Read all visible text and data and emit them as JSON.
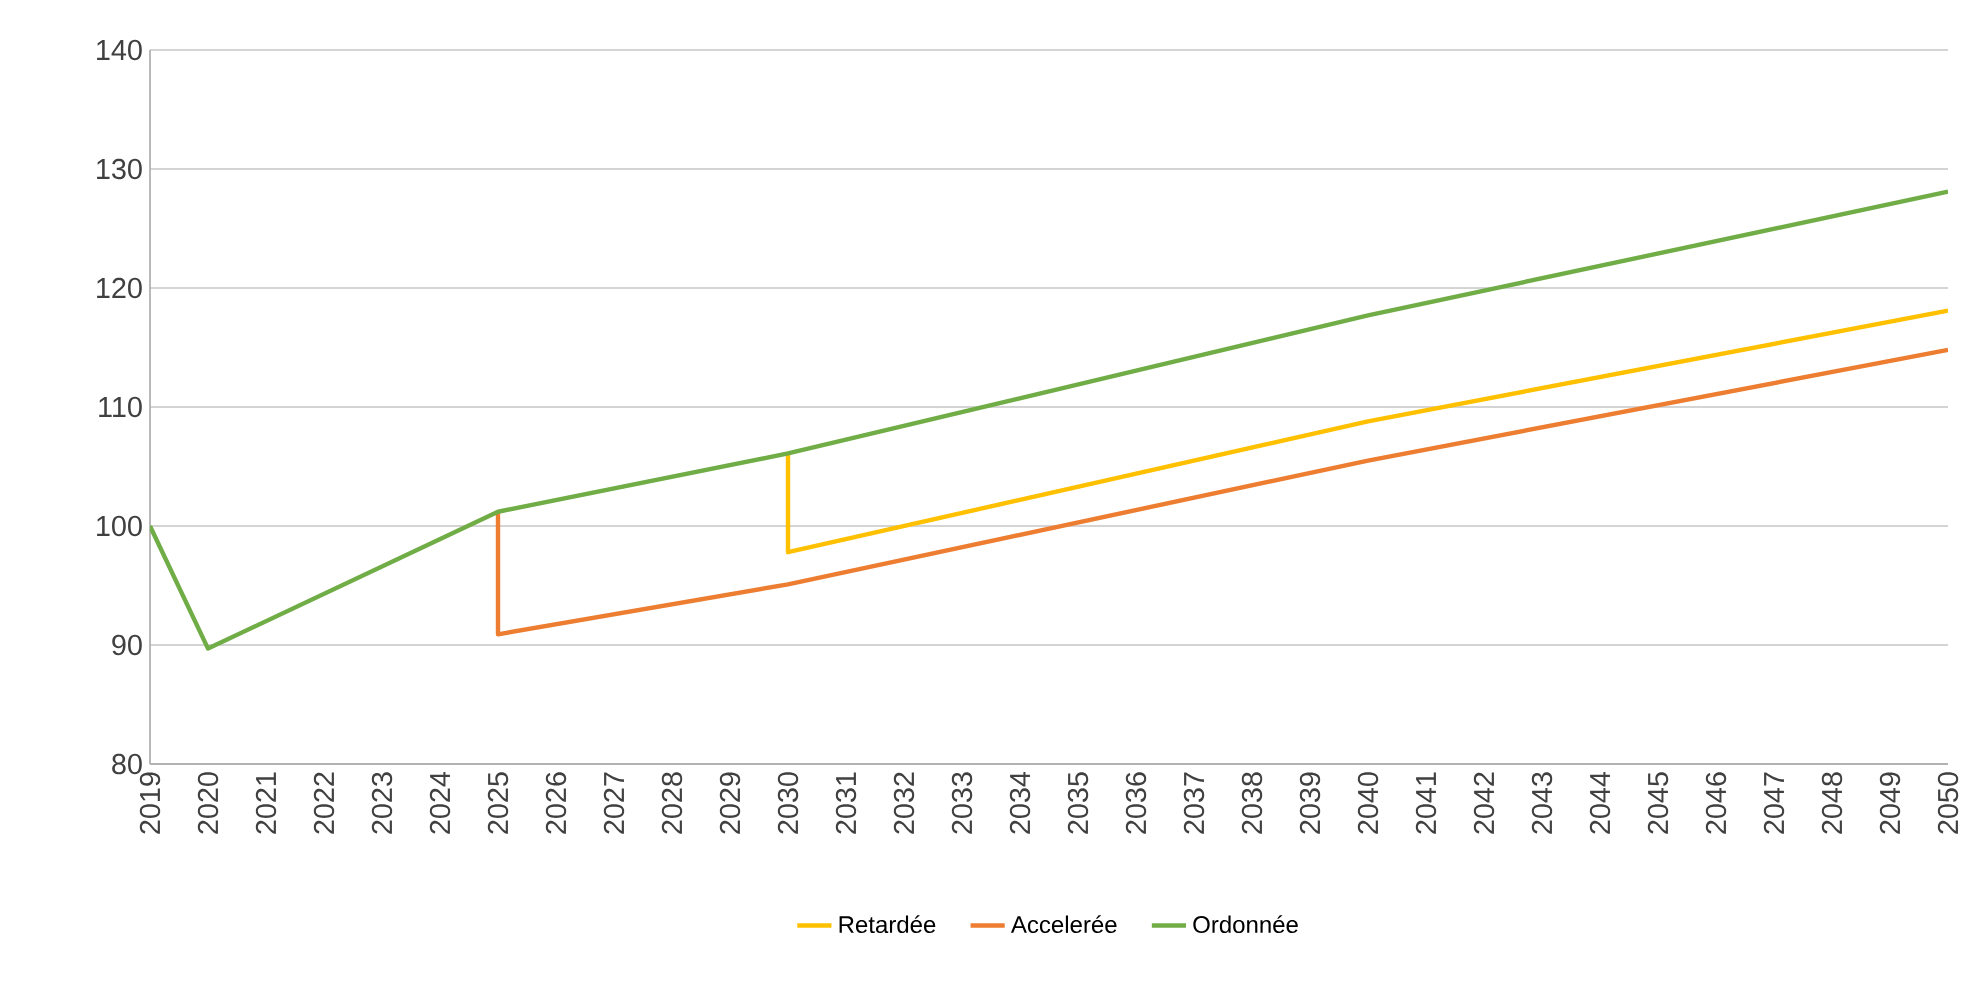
{
  "chart_data": {
    "type": "line",
    "xlim": [
      2019,
      2050
    ],
    "xticks": [
      2019,
      2020,
      2021,
      2022,
      2023,
      2024,
      2025,
      2026,
      2027,
      2028,
      2029,
      2030,
      2031,
      2032,
      2033,
      2034,
      2035,
      2036,
      2037,
      2038,
      2039,
      2040,
      2041,
      2042,
      2043,
      2044,
      2045,
      2046,
      2047,
      2048,
      2049,
      2050
    ],
    "ylim": [
      80,
      140
    ],
    "yticks": [
      80,
      90,
      100,
      110,
      120,
      130,
      140
    ],
    "grid": "y",
    "legend": "bottom",
    "marker": "none",
    "line_style": "solid",
    "series": [
      {
        "name": "Retardée",
        "color": "#ffc000",
        "x": [
          2030,
          2030,
          2040,
          2050
        ],
        "values": [
          106.1,
          97.8,
          108.8,
          118.1
        ]
      },
      {
        "name": "Accelerée",
        "color": "#ed7d31",
        "x": [
          2025,
          2025,
          2030,
          2040,
          2050
        ],
        "values": [
          101.2,
          90.9,
          95.1,
          105.5,
          114.8
        ]
      },
      {
        "name": "Ordonnée",
        "color": "#70ad47",
        "x": [
          2019,
          2020,
          2025,
          2030,
          2040,
          2050
        ],
        "values": [
          100,
          89.7,
          101.2,
          106.1,
          117.7,
          128.1
        ]
      }
    ]
  }
}
